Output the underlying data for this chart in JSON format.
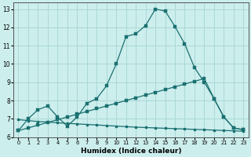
{
  "xlabel": "Humidex (Indice chaleur)",
  "xlim": [
    -0.5,
    23.5
  ],
  "ylim": [
    6.0,
    13.35
  ],
  "yticks": [
    6,
    7,
    8,
    9,
    10,
    11,
    12,
    13
  ],
  "xticks": [
    0,
    1,
    2,
    3,
    4,
    5,
    6,
    7,
    8,
    9,
    10,
    11,
    12,
    13,
    14,
    15,
    16,
    17,
    18,
    19,
    20,
    21,
    22,
    23
  ],
  "bg_color": "#cceeed",
  "grid_color": "#aad8d5",
  "line_color": "#1a7070",
  "curve1_x": [
    0,
    1,
    2,
    3,
    4,
    5,
    6,
    7,
    8,
    9,
    10,
    11,
    12,
    13,
    14,
    15,
    16,
    17,
    18,
    19,
    20,
    21,
    22,
    23
  ],
  "curve1_y": [
    6.35,
    7.0,
    7.5,
    7.7,
    7.1,
    6.6,
    7.1,
    7.85,
    8.1,
    8.8,
    10.0,
    11.5,
    11.65,
    12.1,
    13.0,
    12.9,
    12.05,
    11.1,
    9.8,
    9.0,
    8.1,
    7.1,
    6.5,
    6.4
  ],
  "curve2_x": [
    0,
    1,
    2,
    3,
    4,
    5,
    6,
    7,
    8,
    9,
    10,
    11,
    12,
    13,
    14,
    15,
    16,
    17,
    18,
    19,
    20,
    21,
    22,
    23
  ],
  "curve2_y": [
    6.35,
    6.5,
    6.65,
    6.8,
    6.95,
    7.1,
    7.25,
    7.4,
    7.55,
    7.7,
    7.85,
    8.0,
    8.15,
    8.3,
    8.45,
    8.6,
    8.75,
    8.9,
    9.05,
    9.2,
    8.1,
    7.1,
    6.5,
    6.4
  ],
  "curve3_x": [
    0,
    1,
    2,
    3,
    4,
    5,
    6,
    7,
    8,
    9,
    10,
    11,
    12,
    13,
    14,
    15,
    16,
    17,
    18,
    19,
    20,
    21,
    22,
    23
  ],
  "curve3_y": [
    6.95,
    6.9,
    6.85,
    6.82,
    6.78,
    6.75,
    6.72,
    6.69,
    6.66,
    6.63,
    6.6,
    6.57,
    6.54,
    6.52,
    6.5,
    6.48,
    6.46,
    6.44,
    6.42,
    6.4,
    6.38,
    6.36,
    6.34,
    6.32
  ]
}
